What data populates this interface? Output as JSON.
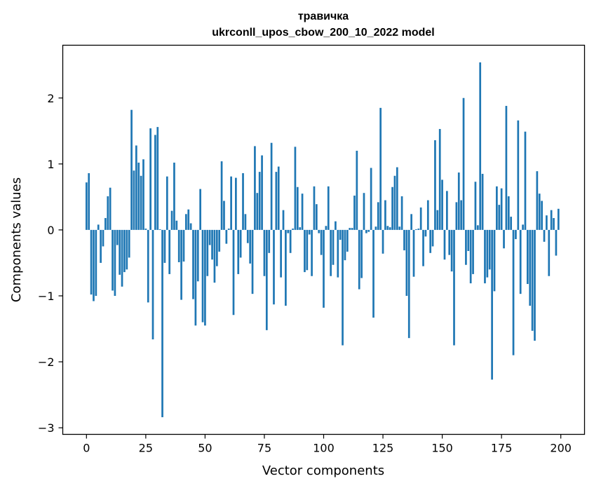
{
  "chart_data": {
    "type": "bar",
    "title": "травичка",
    "subtitle": "ukrconll_upos_cbow_200_10_2022 model",
    "xlabel": "Vector components",
    "ylabel": "Components values",
    "xlim": [
      -10,
      210
    ],
    "ylim": [
      -3.1,
      2.8
    ],
    "xticks": [
      0,
      25,
      50,
      75,
      100,
      125,
      150,
      175,
      200
    ],
    "yticks": [
      -3,
      -2,
      -1,
      0,
      1,
      2
    ],
    "ytick_labels": [
      "−3",
      "−2",
      "−1",
      "0",
      "1",
      "2"
    ],
    "bar_color": "#1f77b4",
    "grid": false,
    "x": [
      0,
      1,
      2,
      3,
      4,
      5,
      6,
      7,
      8,
      9,
      10,
      11,
      12,
      13,
      14,
      15,
      16,
      17,
      18,
      19,
      20,
      21,
      22,
      23,
      24,
      25,
      26,
      27,
      28,
      29,
      30,
      31,
      32,
      33,
      34,
      35,
      36,
      37,
      38,
      39,
      40,
      41,
      42,
      43,
      44,
      45,
      46,
      47,
      48,
      49,
      50,
      51,
      52,
      53,
      54,
      55,
      56,
      57,
      58,
      59,
      60,
      61,
      62,
      63,
      64,
      65,
      66,
      67,
      68,
      69,
      70,
      71,
      72,
      73,
      74,
      75,
      76,
      77,
      78,
      79,
      80,
      81,
      82,
      83,
      84,
      85,
      86,
      87,
      88,
      89,
      90,
      91,
      92,
      93,
      94,
      95,
      96,
      97,
      98,
      99,
      100,
      101,
      102,
      103,
      104,
      105,
      106,
      107,
      108,
      109,
      110,
      111,
      112,
      113,
      114,
      115,
      116,
      117,
      118,
      119,
      120,
      121,
      122,
      123,
      124,
      125,
      126,
      127,
      128,
      129,
      130,
      131,
      132,
      133,
      134,
      135,
      136,
      137,
      138,
      139,
      140,
      141,
      142,
      143,
      144,
      145,
      146,
      147,
      148,
      149,
      150,
      151,
      152,
      153,
      154,
      155,
      156,
      157,
      158,
      159,
      160,
      161,
      162,
      163,
      164,
      165,
      166,
      167,
      168,
      169,
      170,
      171,
      172,
      173,
      174,
      175,
      176,
      177,
      178,
      179,
      180,
      181,
      182,
      183,
      184,
      185,
      186,
      187,
      188,
      189,
      190,
      191,
      192,
      193,
      194,
      195,
      196,
      197,
      198,
      199
    ],
    "values": [
      0.72,
      0.86,
      -0.98,
      -1.08,
      -1.0,
      0.08,
      -0.5,
      -0.25,
      0.18,
      0.51,
      0.64,
      -0.92,
      -1.0,
      -0.23,
      -0.68,
      -0.86,
      -0.64,
      -0.6,
      -0.42,
      1.82,
      0.9,
      1.28,
      1.02,
      0.82,
      1.07,
      0.02,
      -1.1,
      1.54,
      -1.66,
      1.44,
      1.56,
      0.01,
      -2.84,
      -0.5,
      0.81,
      -0.67,
      0.29,
      1.02,
      0.14,
      -0.49,
      -1.06,
      -0.48,
      0.24,
      0.31,
      0.1,
      -1.05,
      -1.45,
      -0.78,
      0.62,
      -1.4,
      -1.45,
      -0.7,
      -0.23,
      -0.45,
      -0.8,
      -0.55,
      -0.33,
      1.04,
      0.44,
      -0.21,
      0.02,
      0.81,
      -1.29,
      0.79,
      -0.67,
      -0.42,
      0.86,
      0.24,
      -0.2,
      -0.51,
      -0.97,
      1.27,
      0.56,
      0.88,
      1.13,
      -0.7,
      -1.52,
      -0.35,
      1.32,
      -1.13,
      0.88,
      0.96,
      -0.72,
      0.3,
      -1.15,
      -0.05,
      -0.35,
      0.02,
      1.26,
      0.65,
      0.04,
      0.55,
      -0.64,
      -0.61,
      -0.07,
      -0.7,
      0.66,
      0.39,
      -0.05,
      -0.38,
      -1.18,
      0.06,
      0.66,
      -0.7,
      -0.53,
      0.13,
      -0.72,
      -0.15,
      -1.75,
      -0.46,
      -0.33,
      0.03,
      0.03,
      0.52,
      1.2,
      -0.9,
      -0.73,
      0.56,
      -0.05,
      -0.03,
      0.94,
      -1.33,
      0.05,
      0.42,
      1.85,
      -0.36,
      0.45,
      0.06,
      0.04,
      0.65,
      0.82,
      0.95,
      0.05,
      0.51,
      -0.31,
      -1.0,
      -1.64,
      0.24,
      -0.71,
      0.01,
      0.02,
      0.34,
      -0.55,
      -0.1,
      0.45,
      -0.35,
      -0.25,
      1.36,
      0.3,
      1.53,
      0.76,
      -0.45,
      0.59,
      -0.38,
      -0.63,
      -1.75,
      0.42,
      0.87,
      0.45,
      2.0,
      -0.53,
      -0.32,
      -0.81,
      -0.67,
      0.73,
      0.07,
      2.54,
      0.85,
      -0.81,
      -0.72,
      -0.6,
      -2.27,
      -0.93,
      0.66,
      0.38,
      0.63,
      -0.28,
      1.88,
      0.51,
      0.2,
      -1.9,
      -0.14,
      1.66,
      -0.97,
      0.08,
      1.49,
      -0.82,
      -1.15,
      -1.53,
      -1.68,
      0.89,
      0.55,
      0.44,
      -0.18,
      0.22,
      -0.7,
      0.3,
      0.18,
      -0.39,
      0.32
    ]
  }
}
